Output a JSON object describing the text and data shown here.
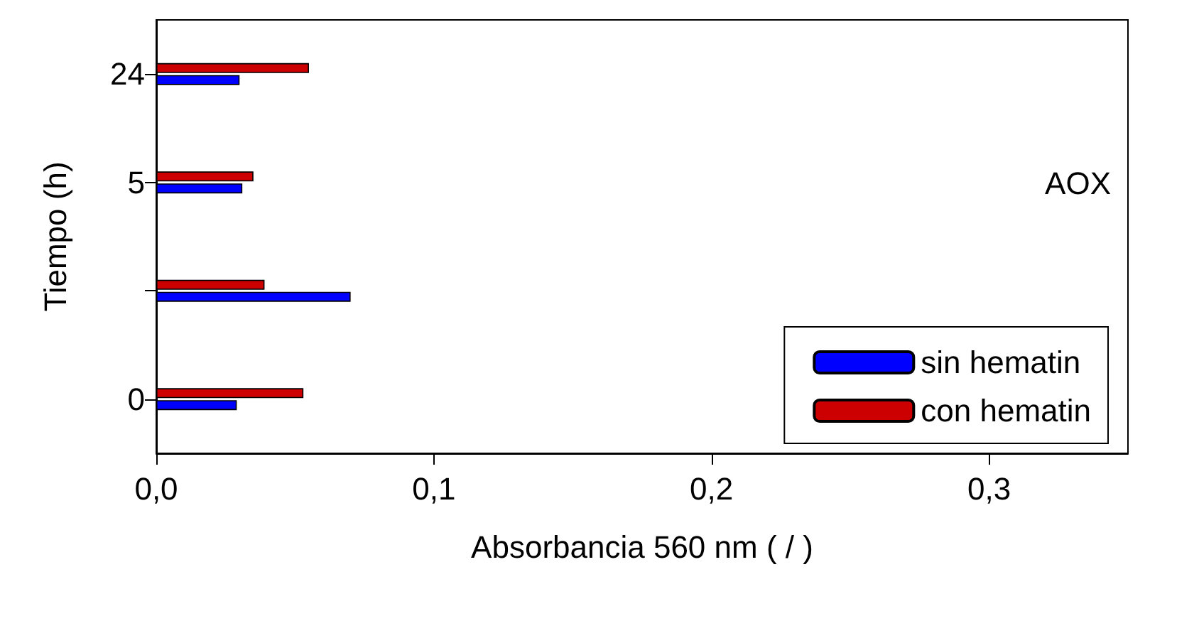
{
  "chart_data": {
    "type": "bar",
    "orientation": "horizontal",
    "categories": [
      "24",
      "5",
      null,
      "0"
    ],
    "series": [
      {
        "name": "sin hematin",
        "color": "#0000ff",
        "values": [
          0.03,
          0.031,
          0.07,
          0.029
        ]
      },
      {
        "name": "con hematin",
        "color": "#cc0000",
        "values": [
          0.055,
          0.035,
          0.039,
          0.053
        ]
      }
    ],
    "xlim": [
      0,
      0.35
    ],
    "xticks": [
      {
        "value": 0,
        "label": "0,0"
      },
      {
        "value": 0.1,
        "label": "0,1"
      },
      {
        "value": 0.2,
        "label": "0,2"
      },
      {
        "value": 0.3,
        "label": "0,3"
      }
    ],
    "xlabel": "Absorbancia 560 nm ( / )",
    "ylabel": "Tiempo (h)",
    "annotations": [
      "AOX"
    ],
    "legend": "bottom right",
    "grid": false
  }
}
